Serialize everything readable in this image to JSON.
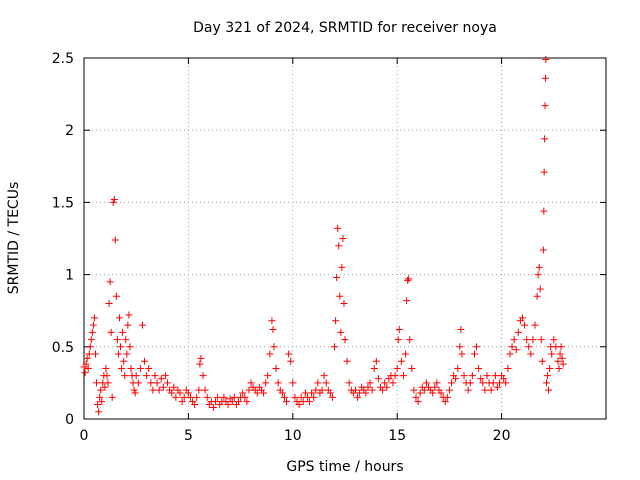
{
  "chart_data": {
    "type": "scatter",
    "title": "Day 321 of 2024, SRMTID for receiver noya",
    "xlabel": "GPS time / hours",
    "ylabel": "SRMTID / TECUs",
    "xlim": [
      0,
      25
    ],
    "ylim": [
      0,
      2.5
    ],
    "x_ticks": [
      0,
      5,
      10,
      15,
      20
    ],
    "x_tick_labels": [
      "0",
      "5",
      "10",
      "15",
      "20"
    ],
    "y_ticks": [
      0,
      0.5,
      1,
      1.5,
      2,
      2.5
    ],
    "y_tick_labels": [
      "0",
      "0.5",
      "1",
      "1.5",
      "2",
      "2.5"
    ],
    "grid": true,
    "marker": "+",
    "color": "#ff0000",
    "series": [
      {
        "name": "SRMTID",
        "points": [
          [
            0.0,
            0.36
          ],
          [
            0.05,
            0.32
          ],
          [
            0.1,
            0.38
          ],
          [
            0.15,
            0.42
          ],
          [
            0.2,
            0.35
          ],
          [
            0.25,
            0.45
          ],
          [
            0.3,
            0.5
          ],
          [
            0.35,
            0.55
          ],
          [
            0.4,
            0.6
          ],
          [
            0.45,
            0.65
          ],
          [
            0.5,
            0.7
          ],
          [
            0.55,
            0.45
          ],
          [
            0.6,
            0.25
          ],
          [
            0.65,
            0.1
          ],
          [
            0.7,
            0.05
          ],
          [
            0.75,
            0.15
          ],
          [
            0.8,
            0.2
          ],
          [
            0.85,
            0.12
          ],
          [
            0.9,
            0.25
          ],
          [
            0.95,
            0.3
          ],
          [
            1.0,
            0.22
          ],
          [
            1.05,
            0.35
          ],
          [
            1.1,
            0.3
          ],
          [
            1.15,
            0.25
          ],
          [
            1.2,
            0.8
          ],
          [
            1.25,
            0.95
          ],
          [
            1.3,
            0.6
          ],
          [
            1.35,
            0.15
          ],
          [
            1.4,
            1.5
          ],
          [
            1.45,
            1.52
          ],
          [
            1.5,
            1.24
          ],
          [
            1.55,
            0.85
          ],
          [
            1.6,
            0.55
          ],
          [
            1.65,
            0.45
          ],
          [
            1.7,
            0.7
          ],
          [
            1.75,
            0.5
          ],
          [
            1.8,
            0.35
          ],
          [
            1.85,
            0.6
          ],
          [
            1.9,
            0.4
          ],
          [
            1.95,
            0.3
          ],
          [
            2.0,
            0.55
          ],
          [
            2.05,
            0.45
          ],
          [
            2.1,
            0.65
          ],
          [
            2.15,
            0.72
          ],
          [
            2.2,
            0.5
          ],
          [
            2.25,
            0.35
          ],
          [
            2.3,
            0.3
          ],
          [
            2.35,
            0.25
          ],
          [
            2.4,
            0.2
          ],
          [
            2.45,
            0.18
          ],
          [
            2.5,
            0.3
          ],
          [
            2.6,
            0.25
          ],
          [
            2.7,
            0.35
          ],
          [
            2.8,
            0.65
          ],
          [
            2.9,
            0.4
          ],
          [
            3.0,
            0.3
          ],
          [
            3.1,
            0.35
          ],
          [
            3.2,
            0.25
          ],
          [
            3.3,
            0.2
          ],
          [
            3.4,
            0.3
          ],
          [
            3.5,
            0.25
          ],
          [
            3.6,
            0.2
          ],
          [
            3.7,
            0.28
          ],
          [
            3.8,
            0.22
          ],
          [
            3.9,
            0.3
          ],
          [
            4.0,
            0.25
          ],
          [
            4.1,
            0.2
          ],
          [
            4.2,
            0.18
          ],
          [
            4.3,
            0.22
          ],
          [
            4.4,
            0.15
          ],
          [
            4.5,
            0.2
          ],
          [
            4.6,
            0.18
          ],
          [
            4.7,
            0.12
          ],
          [
            4.8,
            0.15
          ],
          [
            4.9,
            0.2
          ],
          [
            5.0,
            0.18
          ],
          [
            5.1,
            0.15
          ],
          [
            5.2,
            0.12
          ],
          [
            5.3,
            0.1
          ],
          [
            5.4,
            0.15
          ],
          [
            5.5,
            0.2
          ],
          [
            5.55,
            0.38
          ],
          [
            5.6,
            0.42
          ],
          [
            5.7,
            0.3
          ],
          [
            5.8,
            0.2
          ],
          [
            5.9,
            0.15
          ],
          [
            6.0,
            0.1
          ],
          [
            6.1,
            0.12
          ],
          [
            6.2,
            0.08
          ],
          [
            6.3,
            0.12
          ],
          [
            6.4,
            0.15
          ],
          [
            6.5,
            0.1
          ],
          [
            6.6,
            0.12
          ],
          [
            6.7,
            0.15
          ],
          [
            6.8,
            0.12
          ],
          [
            6.9,
            0.1
          ],
          [
            7.0,
            0.14
          ],
          [
            7.1,
            0.12
          ],
          [
            7.2,
            0.15
          ],
          [
            7.3,
            0.1
          ],
          [
            7.4,
            0.12
          ],
          [
            7.5,
            0.15
          ],
          [
            7.6,
            0.18
          ],
          [
            7.7,
            0.15
          ],
          [
            7.8,
            0.12
          ],
          [
            7.9,
            0.2
          ],
          [
            8.0,
            0.25
          ],
          [
            8.1,
            0.22
          ],
          [
            8.2,
            0.2
          ],
          [
            8.3,
            0.18
          ],
          [
            8.4,
            0.22
          ],
          [
            8.5,
            0.2
          ],
          [
            8.6,
            0.18
          ],
          [
            8.7,
            0.25
          ],
          [
            8.8,
            0.3
          ],
          [
            8.9,
            0.45
          ],
          [
            9.0,
            0.68
          ],
          [
            9.05,
            0.62
          ],
          [
            9.1,
            0.5
          ],
          [
            9.2,
            0.35
          ],
          [
            9.3,
            0.25
          ],
          [
            9.4,
            0.2
          ],
          [
            9.5,
            0.18
          ],
          [
            9.6,
            0.15
          ],
          [
            9.7,
            0.12
          ],
          [
            9.8,
            0.45
          ],
          [
            9.9,
            0.4
          ],
          [
            10.0,
            0.25
          ],
          [
            10.1,
            0.15
          ],
          [
            10.2,
            0.12
          ],
          [
            10.3,
            0.1
          ],
          [
            10.4,
            0.15
          ],
          [
            10.5,
            0.12
          ],
          [
            10.6,
            0.18
          ],
          [
            10.7,
            0.15
          ],
          [
            10.8,
            0.12
          ],
          [
            10.9,
            0.18
          ],
          [
            11.0,
            0.15
          ],
          [
            11.1,
            0.2
          ],
          [
            11.2,
            0.25
          ],
          [
            11.3,
            0.18
          ],
          [
            11.4,
            0.2
          ],
          [
            11.5,
            0.3
          ],
          [
            11.6,
            0.25
          ],
          [
            11.7,
            0.2
          ],
          [
            11.8,
            0.18
          ],
          [
            11.9,
            0.15
          ],
          [
            12.0,
            0.5
          ],
          [
            12.05,
            0.68
          ],
          [
            12.1,
            0.98
          ],
          [
            12.15,
            1.32
          ],
          [
            12.2,
            1.2
          ],
          [
            12.25,
            0.85
          ],
          [
            12.3,
            0.6
          ],
          [
            12.35,
            1.05
          ],
          [
            12.4,
            1.25
          ],
          [
            12.45,
            0.8
          ],
          [
            12.5,
            0.55
          ],
          [
            12.6,
            0.4
          ],
          [
            12.7,
            0.25
          ],
          [
            12.8,
            0.2
          ],
          [
            12.9,
            0.18
          ],
          [
            13.0,
            0.2
          ],
          [
            13.1,
            0.15
          ],
          [
            13.2,
            0.18
          ],
          [
            13.3,
            0.22
          ],
          [
            13.4,
            0.2
          ],
          [
            13.5,
            0.18
          ],
          [
            13.6,
            0.22
          ],
          [
            13.7,
            0.25
          ],
          [
            13.8,
            0.2
          ],
          [
            13.9,
            0.35
          ],
          [
            14.0,
            0.4
          ],
          [
            14.1,
            0.28
          ],
          [
            14.2,
            0.22
          ],
          [
            14.3,
            0.2
          ],
          [
            14.4,
            0.25
          ],
          [
            14.5,
            0.22
          ],
          [
            14.6,
            0.28
          ],
          [
            14.7,
            0.3
          ],
          [
            14.8,
            0.25
          ],
          [
            14.9,
            0.3
          ],
          [
            15.0,
            0.35
          ],
          [
            15.05,
            0.55
          ],
          [
            15.1,
            0.62
          ],
          [
            15.2,
            0.4
          ],
          [
            15.3,
            0.3
          ],
          [
            15.4,
            0.45
          ],
          [
            15.45,
            0.82
          ],
          [
            15.5,
            0.96
          ],
          [
            15.55,
            0.97
          ],
          [
            15.6,
            0.55
          ],
          [
            15.7,
            0.35
          ],
          [
            15.8,
            0.2
          ],
          [
            15.9,
            0.15
          ],
          [
            16.0,
            0.12
          ],
          [
            16.1,
            0.18
          ],
          [
            16.2,
            0.22
          ],
          [
            16.3,
            0.2
          ],
          [
            16.4,
            0.25
          ],
          [
            16.5,
            0.22
          ],
          [
            16.6,
            0.2
          ],
          [
            16.7,
            0.18
          ],
          [
            16.8,
            0.22
          ],
          [
            16.9,
            0.25
          ],
          [
            17.0,
            0.2
          ],
          [
            17.1,
            0.18
          ],
          [
            17.2,
            0.15
          ],
          [
            17.3,
            0.12
          ],
          [
            17.4,
            0.15
          ],
          [
            17.5,
            0.2
          ],
          [
            17.6,
            0.25
          ],
          [
            17.7,
            0.3
          ],
          [
            17.8,
            0.28
          ],
          [
            17.9,
            0.35
          ],
          [
            18.0,
            0.5
          ],
          [
            18.05,
            0.62
          ],
          [
            18.1,
            0.45
          ],
          [
            18.2,
            0.3
          ],
          [
            18.3,
            0.25
          ],
          [
            18.4,
            0.2
          ],
          [
            18.5,
            0.25
          ],
          [
            18.6,
            0.3
          ],
          [
            18.7,
            0.45
          ],
          [
            18.8,
            0.5
          ],
          [
            18.9,
            0.35
          ],
          [
            19.0,
            0.28
          ],
          [
            19.1,
            0.25
          ],
          [
            19.2,
            0.2
          ],
          [
            19.3,
            0.3
          ],
          [
            19.4,
            0.25
          ],
          [
            19.5,
            0.2
          ],
          [
            19.6,
            0.25
          ],
          [
            19.7,
            0.3
          ],
          [
            19.8,
            0.22
          ],
          [
            19.9,
            0.25
          ],
          [
            20.0,
            0.3
          ],
          [
            20.1,
            0.28
          ],
          [
            20.2,
            0.25
          ],
          [
            20.3,
            0.35
          ],
          [
            20.4,
            0.45
          ],
          [
            20.5,
            0.5
          ],
          [
            20.6,
            0.55
          ],
          [
            20.7,
            0.48
          ],
          [
            20.8,
            0.6
          ],
          [
            20.9,
            0.68
          ],
          [
            21.0,
            0.7
          ],
          [
            21.1,
            0.65
          ],
          [
            21.2,
            0.55
          ],
          [
            21.3,
            0.5
          ],
          [
            21.4,
            0.45
          ],
          [
            21.5,
            0.55
          ],
          [
            21.6,
            0.65
          ],
          [
            21.7,
            0.85
          ],
          [
            21.75,
            1.0
          ],
          [
            21.8,
            1.05
          ],
          [
            21.85,
            0.9
          ],
          [
            21.9,
            0.55
          ],
          [
            21.95,
            0.4
          ],
          [
            22.0,
            1.17
          ],
          [
            22.02,
            1.44
          ],
          [
            22.04,
            1.71
          ],
          [
            22.06,
            1.94
          ],
          [
            22.08,
            2.17
          ],
          [
            22.1,
            2.36
          ],
          [
            22.12,
            2.49
          ],
          [
            22.15,
            0.25
          ],
          [
            22.2,
            0.3
          ],
          [
            22.25,
            0.2
          ],
          [
            22.3,
            0.35
          ],
          [
            22.35,
            0.5
          ],
          [
            22.4,
            0.45
          ],
          [
            22.5,
            0.55
          ],
          [
            22.6,
            0.5
          ],
          [
            22.7,
            0.4
          ],
          [
            22.75,
            0.35
          ],
          [
            22.8,
            0.45
          ],
          [
            22.85,
            0.5
          ],
          [
            22.9,
            0.42
          ],
          [
            22.95,
            0.38
          ]
        ]
      }
    ]
  }
}
